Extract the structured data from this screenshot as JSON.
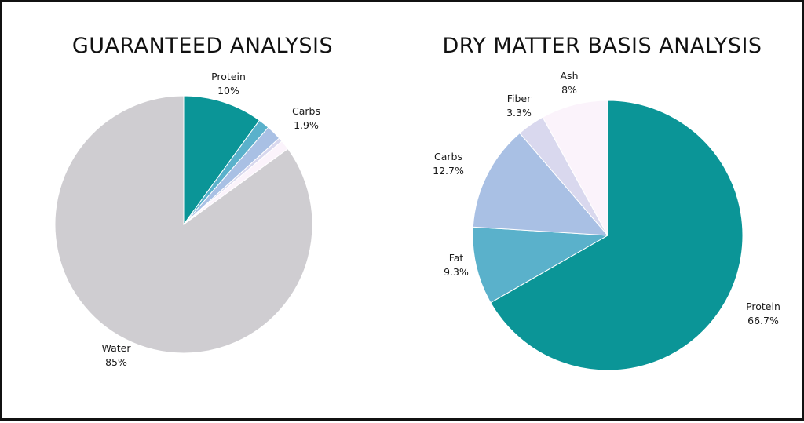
{
  "chart_data": [
    {
      "type": "pie",
      "title": "GUARANTEED ANALYSIS",
      "slices": [
        {
          "label": "Protein",
          "value": 10,
          "value_label": "10%",
          "color": "#0b9597",
          "show_label": true
        },
        {
          "label": "",
          "value": 1.4,
          "value_label": "",
          "color": "#5ab1cb",
          "show_label": false
        },
        {
          "label": "Carbs",
          "value": 1.9,
          "value_label": "1.9%",
          "color": "#a9c0e4",
          "show_label": true
        },
        {
          "label": "",
          "value": 0.5,
          "value_label": "",
          "color": "#d9d8ee",
          "show_label": false
        },
        {
          "label": "",
          "value": 1.2,
          "value_label": "",
          "color": "#fbf3fb",
          "show_label": false
        },
        {
          "label": "Water",
          "value": 85,
          "value_label": "85%",
          "color": "#cfcdd1",
          "show_label": true
        }
      ]
    },
    {
      "type": "pie",
      "title": "DRY MATTER BASIS ANALYSIS",
      "slices": [
        {
          "label": "Protein",
          "value": 66.7,
          "value_label": "66.7%",
          "color": "#0b9597",
          "show_label": true
        },
        {
          "label": "Fat",
          "value": 9.3,
          "value_label": "9.3%",
          "color": "#5ab1cb",
          "show_label": true
        },
        {
          "label": "Carbs",
          "value": 12.7,
          "value_label": "12.7%",
          "color": "#a9c0e4",
          "show_label": true
        },
        {
          "label": "Fiber",
          "value": 3.3,
          "value_label": "3.3%",
          "color": "#d9d8ee",
          "show_label": true
        },
        {
          "label": "Ash",
          "value": 8,
          "value_label": "8%",
          "color": "#fbf3fb",
          "show_label": true
        }
      ]
    }
  ]
}
